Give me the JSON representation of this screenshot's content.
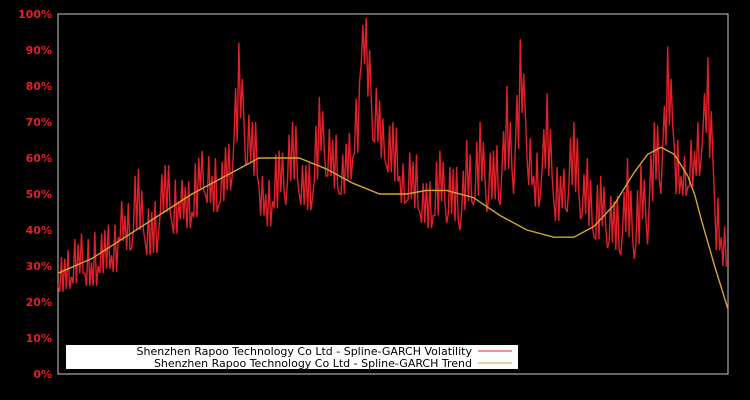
{
  "chart_data": {
    "type": "line",
    "title": "",
    "xlabel": "",
    "ylabel": "",
    "ylim": [
      0,
      100
    ],
    "yticks": [
      "0%",
      "10%",
      "20%",
      "30%",
      "40%",
      "50%",
      "60%",
      "70%",
      "80%",
      "90%",
      "100%"
    ],
    "grid": false,
    "legend_position": "lower-left",
    "background": "#000000",
    "frame_color": "#c8c8c8",
    "series": [
      {
        "name": "Shenzhen Rapoo Technology Co Ltd - Spline-GARCH Volatility",
        "color": "#e0202a",
        "x": [
          0,
          1,
          2,
          3,
          4,
          5,
          6,
          7,
          8,
          9,
          10,
          11,
          12,
          13,
          14,
          15,
          16,
          17,
          18,
          19,
          20,
          21,
          22,
          23,
          24,
          25,
          26,
          27,
          28,
          29,
          30,
          31,
          32,
          33,
          34,
          35,
          36,
          37,
          38,
          39,
          40,
          41,
          42,
          43,
          44,
          45,
          46,
          47,
          48,
          49,
          50,
          51,
          52,
          53,
          54,
          55,
          56,
          57,
          58,
          59,
          60,
          61,
          62,
          63,
          64,
          65,
          66,
          67,
          68,
          69,
          70,
          71,
          72,
          73,
          74,
          75,
          76,
          77,
          78,
          79,
          80,
          81,
          82,
          83,
          84,
          85,
          86,
          87,
          88,
          89,
          90,
          91,
          92,
          93,
          94,
          95,
          96,
          97,
          98,
          99,
          100
        ],
        "values": [
          25,
          32,
          27,
          36,
          28,
          31,
          30,
          40,
          33,
          38,
          44,
          35,
          57,
          37,
          45,
          39,
          58,
          42,
          48,
          52,
          45,
          60,
          50,
          55,
          47,
          63,
          55,
          92,
          58,
          70,
          52,
          50,
          48,
          62,
          47,
          70,
          50,
          58,
          49,
          77,
          55,
          65,
          50,
          64,
          60,
          81,
          99,
          65,
          76,
          58,
          70,
          55,
          48,
          59,
          45,
          53,
          44,
          62,
          42,
          57,
          40,
          65,
          47,
          70,
          45,
          62,
          47,
          80,
          50,
          93,
          60,
          55,
          50,
          78,
          48,
          55,
          45,
          70,
          43,
          60,
          38,
          55,
          35,
          48,
          33,
          60,
          32,
          58,
          36,
          70,
          50,
          91,
          63,
          55,
          52,
          62,
          60,
          88,
          48,
          38,
          30
        ]
      },
      {
        "name": "Shenzhen Rapoo Technology Co Ltd - Spline-GARCH Trend",
        "color": "#d4a630",
        "x": [
          0,
          5,
          10,
          15,
          20,
          25,
          28,
          30,
          33,
          36,
          40,
          44,
          48,
          52,
          55,
          58,
          62,
          66,
          70,
          74,
          77,
          80,
          83,
          86,
          88,
          90,
          92,
          94,
          95,
          96,
          98,
          100
        ],
        "values": [
          28,
          32,
          38,
          44,
          50,
          55,
          58,
          60,
          60,
          60,
          57,
          53,
          50,
          50,
          51,
          51,
          49,
          44,
          40,
          38,
          38,
          41,
          47,
          56,
          61,
          63,
          61,
          55,
          50,
          43,
          30,
          18
        ]
      }
    ]
  },
  "legend": {
    "items": [
      {
        "label": "Shenzhen Rapoo Technology Co Ltd - Spline-GARCH Volatility",
        "color": "#e0202a"
      },
      {
        "label": "Shenzhen Rapoo Technology Co Ltd - Spline-GARCH Trend",
        "color": "#d4a630"
      }
    ]
  }
}
